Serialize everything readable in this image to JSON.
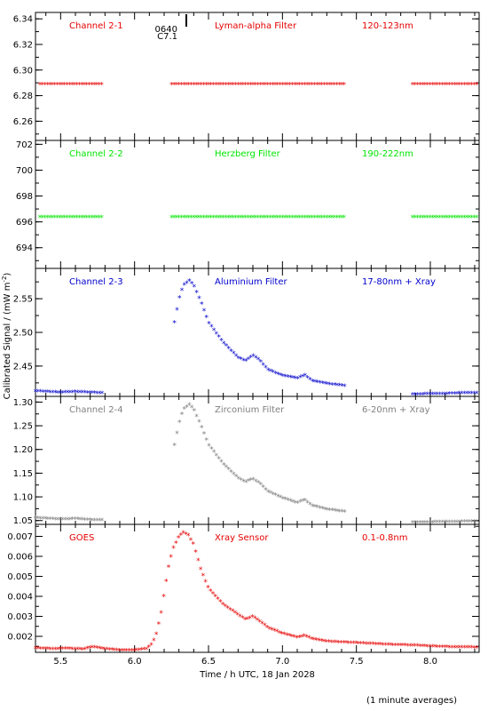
{
  "chart_data": {
    "type": "scatter",
    "ylabel_main": "Calibrated Signal / (mW m",
    "ylabel_sup": "-2",
    "ylabel_tail": ")",
    "xlabel": "Time / h UTC, 18 Jan 2028",
    "note": "(1 minute averages)",
    "xlim": [
      5.33,
      8.33
    ],
    "xticks": [
      "5.5",
      "6.0",
      "6.5",
      "7.0",
      "7.5",
      "8.0"
    ],
    "xtick_values": [
      5.5,
      6.0,
      6.5,
      7.0,
      7.5,
      8.0
    ],
    "marker_tick": {
      "x": 6.35,
      "labels": [
        "0640",
        "C7.1"
      ]
    },
    "panels": [
      {
        "channel": "Channel 2-1",
        "filter": "Lyman-alpha Filter",
        "band": "120-123nm",
        "color": "#e60000",
        "ylim": [
          6.245,
          6.345
        ],
        "yticks": [
          "6.26",
          "6.28",
          "6.30",
          "6.32",
          "6.34"
        ],
        "ytick_values": [
          6.26,
          6.28,
          6.3,
          6.32,
          6.34
        ],
        "segments": [
          {
            "x": [
              5.36,
              5.78
            ],
            "y": [
              6.289,
              6.289
            ]
          },
          {
            "x": [
              6.25,
              7.42
            ],
            "y": [
              6.289,
              6.289
            ]
          },
          {
            "x": [
              7.88,
              8.33
            ],
            "y": [
              6.289,
              6.289
            ]
          }
        ]
      },
      {
        "channel": "Channel 2-2",
        "filter": "Herzberg Filter",
        "band": "190-222nm",
        "color": "#00e600",
        "ylim": [
          692.4,
          702.3
        ],
        "yticks": [
          "694",
          "696",
          "698",
          "700",
          "702"
        ],
        "ytick_values": [
          694,
          696,
          698,
          700,
          702
        ],
        "segments": [
          {
            "x": [
              5.36,
              5.78
            ],
            "y": [
              696.4,
              696.4
            ]
          },
          {
            "x": [
              6.25,
              7.42
            ],
            "y": [
              696.4,
              696.4
            ]
          },
          {
            "x": [
              7.88,
              8.33
            ],
            "y": [
              696.4,
              696.4
            ]
          }
        ]
      },
      {
        "channel": "Channel 2-3",
        "filter": "Aluminium Filter",
        "band": "17-80nm + Xray",
        "color": "#0000cc",
        "ylim": [
          2.405,
          2.595
        ],
        "yticks": [
          "2.45",
          "2.50",
          "2.55"
        ],
        "ytick_values": [
          2.45,
          2.5,
          2.55
        ],
        "segments": [
          {
            "x": [
              5.33,
              5.5,
              5.6,
              5.7,
              5.78
            ],
            "y": [
              2.413,
              2.411,
              2.412,
              2.411,
              2.41
            ]
          },
          {
            "x": [
              6.27,
              6.3,
              6.33,
              6.37,
              6.4,
              6.45,
              6.5,
              6.6,
              6.7,
              6.75,
              6.8,
              6.85,
              6.9,
              7.0,
              7.1,
              7.15,
              7.2,
              7.3,
              7.42
            ],
            "y": [
              2.515,
              2.55,
              2.57,
              2.577,
              2.57,
              2.545,
              2.515,
              2.485,
              2.463,
              2.458,
              2.466,
              2.458,
              2.445,
              2.436,
              2.432,
              2.437,
              2.428,
              2.424,
              2.421
            ]
          },
          {
            "x": [
              7.88,
              8.0,
              8.1,
              8.2,
              8.33
            ],
            "y": [
              2.408,
              2.409,
              2.409,
              2.41,
              2.41
            ]
          }
        ]
      },
      {
        "channel": "Channel 2-4",
        "filter": "Zirconium Filter",
        "band": "6-20nm + Xray",
        "color": "#808080",
        "ylim": [
          1.042,
          1.312
        ],
        "yticks": [
          "1.05",
          "1.10",
          "1.15",
          "1.20",
          "1.25",
          "1.30"
        ],
        "ytick_values": [
          1.05,
          1.1,
          1.15,
          1.2,
          1.25,
          1.3
        ],
        "segments": [
          {
            "x": [
              5.33,
              5.5,
              5.6,
              5.7,
              5.78
            ],
            "y": [
              1.056,
              1.053,
              1.054,
              1.052,
              1.051
            ]
          },
          {
            "x": [
              6.27,
              6.3,
              6.33,
              6.37,
              6.4,
              6.45,
              6.5,
              6.6,
              6.7,
              6.75,
              6.8,
              6.85,
              6.9,
              7.0,
              7.1,
              7.15,
              7.2,
              7.3,
              7.42
            ],
            "y": [
              1.21,
              1.255,
              1.285,
              1.295,
              1.285,
              1.25,
              1.21,
              1.17,
              1.14,
              1.132,
              1.138,
              1.128,
              1.112,
              1.098,
              1.088,
              1.094,
              1.082,
              1.074,
              1.069
            ]
          },
          {
            "x": [
              7.88,
              8.0,
              8.1,
              8.2,
              8.33
            ],
            "y": [
              1.047,
              1.047,
              1.048,
              1.048,
              1.049
            ]
          }
        ]
      },
      {
        "channel": "GOES",
        "filter": "Xray Sensor",
        "band": "0.1-0.8nm",
        "color": "#e60000",
        "ylim": [
          0.0012,
          0.0076
        ],
        "yticks": [
          "0.002",
          "0.003",
          "0.004",
          "0.005",
          "0.006",
          "0.007"
        ],
        "ytick_values": [
          0.002,
          0.003,
          0.004,
          0.005,
          0.006,
          0.007
        ],
        "segments": [
          {
            "x": [
              5.33,
              5.45,
              5.55,
              5.65,
              5.72,
              5.8,
              5.9,
              6.0,
              6.08,
              6.12,
              6.15,
              6.18,
              6.2,
              6.23,
              6.26,
              6.3,
              6.33,
              6.36,
              6.4,
              6.45,
              6.5,
              6.6,
              6.7,
              6.75,
              6.8,
              6.85,
              6.9,
              7.0,
              7.1,
              7.15,
              7.2,
              7.3,
              7.5,
              7.7,
              7.9,
              8.1,
              8.33
            ],
            "y": [
              0.00142,
              0.00138,
              0.0014,
              0.00136,
              0.00148,
              0.00138,
              0.00132,
              0.00132,
              0.00138,
              0.00165,
              0.0022,
              0.0032,
              0.0042,
              0.0055,
              0.0064,
              0.007,
              0.0072,
              0.0071,
              0.0066,
              0.0053,
              0.0044,
              0.0036,
              0.0031,
              0.00285,
              0.003,
              0.00275,
              0.00245,
              0.00215,
              0.00195,
              0.00205,
              0.00188,
              0.00175,
              0.00168,
              0.0016,
              0.00155,
              0.00148,
              0.00145
            ]
          }
        ]
      }
    ]
  }
}
